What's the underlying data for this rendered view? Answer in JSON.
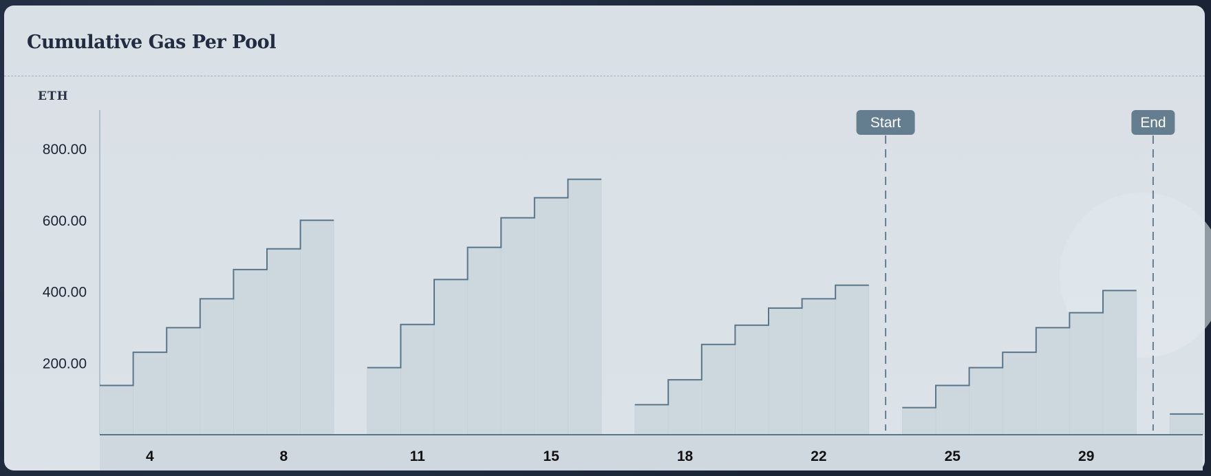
{
  "card": {
    "title": "Cumulative Gas Per Pool"
  },
  "chart_data": {
    "type": "area",
    "title": "Cumulative Gas Per Pool",
    "ylabel": "ETH",
    "xlabel": "",
    "ylim": [
      0,
      900
    ],
    "y_ticks": [
      "200.00",
      "400.00",
      "600.00",
      "800.00"
    ],
    "x_tick_labels": [
      "4",
      "8",
      "11",
      "15",
      "18",
      "22",
      "25",
      "29"
    ],
    "step": true,
    "grid": false,
    "groups": [
      {
        "values": [
          138,
          231,
          300,
          381,
          463,
          521,
          601
        ]
      },
      {
        "values": [
          188,
          309,
          435,
          525,
          608,
          664,
          716
        ]
      },
      {
        "values": [
          84,
          154,
          253,
          307,
          355,
          381,
          419
        ]
      },
      {
        "values": [
          76,
          138,
          188,
          231,
          300,
          342,
          404
        ]
      },
      {
        "values": [
          58
        ]
      }
    ],
    "markers": [
      {
        "label": "Start",
        "after_group": 2
      },
      {
        "label": "End",
        "after_group": 3
      }
    ],
    "colors": {
      "line": "#5a7488",
      "fill": "#cdd7de",
      "marker": "#647d8f",
      "axis_band": "#d0d8df"
    }
  }
}
